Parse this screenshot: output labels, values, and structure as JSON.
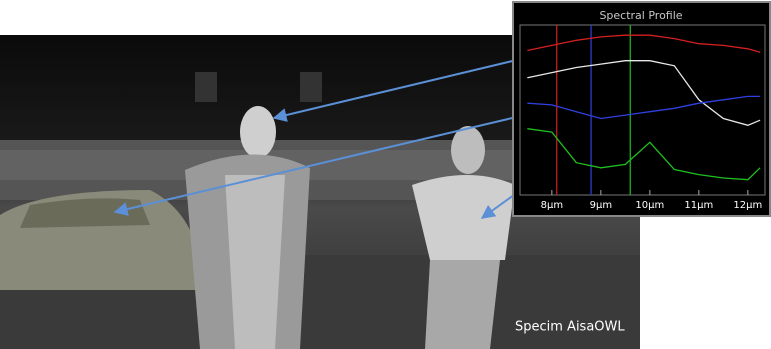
{
  "caption": "Specim AisaOWL",
  "chart_data": {
    "type": "line",
    "title": "Spectral Profile",
    "x": [
      7.5,
      8,
      8.5,
      9,
      9.5,
      10,
      10.5,
      11,
      11.5,
      12,
      12.25
    ],
    "series": [
      {
        "color": "#d42020",
        "values": [
          85,
          88,
          91,
          93,
          94,
          94,
          92,
          89,
          88,
          86,
          84
        ]
      },
      {
        "color": "#e8e8e8",
        "values": [
          69,
          72,
          75,
          77,
          79,
          79,
          76,
          56,
          45,
          41,
          44
        ]
      },
      {
        "color": "#3040e0",
        "values": [
          54,
          53,
          49,
          45,
          47,
          49,
          51,
          54,
          56,
          58,
          58
        ]
      },
      {
        "color": "#20c020",
        "values": [
          39,
          37,
          19,
          16,
          18,
          31,
          15,
          12,
          10,
          9,
          16
        ]
      }
    ],
    "markers": [
      {
        "value": 8.1,
        "color": "#d42020"
      },
      {
        "value": 8.8,
        "color": "#3040e0"
      },
      {
        "value": 9.6,
        "color": "#20c020"
      }
    ],
    "xlim": [
      7.35,
      12.35
    ],
    "ylim": [
      0,
      100
    ],
    "xticks": [
      {
        "value": 8,
        "label": "8µm"
      },
      {
        "value": 9,
        "label": "9µm"
      },
      {
        "value": 10,
        "label": "10µm"
      },
      {
        "value": 11,
        "label": "11µm"
      },
      {
        "value": 12,
        "label": "12µm"
      }
    ]
  }
}
